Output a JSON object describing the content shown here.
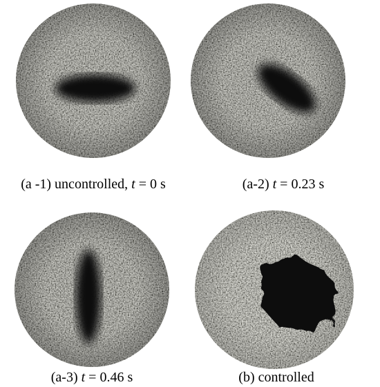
{
  "panels": [
    {
      "caption": {
        "prefix": "(a -1) uncontrolled, ",
        "variable": "t",
        "suffix": " = 0 s"
      }
    },
    {
      "caption": {
        "prefix": "(a-2) ",
        "variable": "t",
        "suffix": " = 0.23 s"
      }
    },
    {
      "caption": {
        "prefix": "(a-3) ",
        "variable": "t",
        "suffix": " = 0.46 s"
      }
    },
    {
      "caption": {
        "prefix": "(b) controlled"
      }
    }
  ]
}
